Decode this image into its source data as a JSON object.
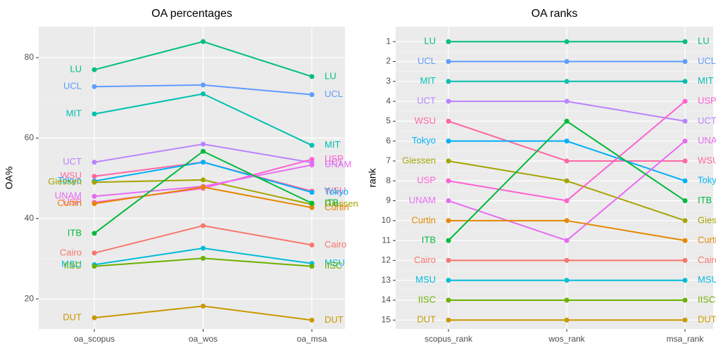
{
  "chart_data": [
    {
      "type": "line",
      "title": "OA percentages",
      "ylabel": "OA%",
      "categories": [
        "oa_scopus",
        "oa_wos",
        "oa_msa"
      ],
      "ylim": [
        12.5,
        87.7
      ],
      "yticks": [
        20,
        40,
        60,
        80
      ],
      "grid": true,
      "series": [
        {
          "name": "LU",
          "color": "#00BF7D",
          "values": [
            77,
            84,
            75.3
          ]
        },
        {
          "name": "UCL",
          "color": "#619CFF",
          "values": [
            72.8,
            73.2,
            70.8
          ]
        },
        {
          "name": "MIT",
          "color": "#00C0AF",
          "values": [
            66,
            71,
            58.2
          ]
        },
        {
          "name": "UCT",
          "color": "#B983FF",
          "values": [
            54,
            58.5,
            53.9
          ]
        },
        {
          "name": "WSU",
          "color": "#FF67A4",
          "values": [
            50.5,
            54,
            46.8
          ]
        },
        {
          "name": "Tokyo",
          "color": "#00B0F6",
          "values": [
            49.3,
            54,
            46.5
          ]
        },
        {
          "name": "Giessen",
          "color": "#A3A500",
          "values": [
            49,
            49.6,
            43.5
          ]
        },
        {
          "name": "USP",
          "color": "#FD61D1",
          "values": [
            44,
            47.5,
            54.7
          ]
        },
        {
          "name": "UNAM",
          "color": "#E76BF3",
          "values": [
            45.5,
            48,
            53.3
          ]
        },
        {
          "name": "Curtin",
          "color": "#E58700",
          "values": [
            43.7,
            47.8,
            42.7
          ]
        },
        {
          "name": "ITB",
          "color": "#00BA38",
          "values": [
            36.3,
            56.7,
            43.8
          ]
        },
        {
          "name": "Cairo",
          "color": "#F8766D",
          "values": [
            31.4,
            38.2,
            33.4
          ]
        },
        {
          "name": "MSU",
          "color": "#00BCD8",
          "values": [
            28.5,
            32.6,
            28.8
          ]
        },
        {
          "name": "IISC",
          "color": "#6BB100",
          "values": [
            28.1,
            30.1,
            28.1
          ]
        },
        {
          "name": "DUT",
          "color": "#C99800",
          "values": [
            15.3,
            18.2,
            14.7
          ]
        }
      ]
    },
    {
      "type": "line",
      "title": "OA ranks",
      "ylabel": "rank",
      "categories": [
        "scopus_rank",
        "wos_rank",
        "msa_rank"
      ],
      "ylim": [
        15.45,
        0.25
      ],
      "yticks": [
        1,
        2,
        3,
        4,
        5,
        6,
        7,
        8,
        9,
        10,
        11,
        12,
        13,
        14,
        15
      ],
      "grid": true,
      "series": [
        {
          "name": "LU",
          "color": "#00BF7D",
          "values": [
            1,
            1,
            1
          ]
        },
        {
          "name": "UCL",
          "color": "#619CFF",
          "values": [
            2,
            2,
            2
          ]
        },
        {
          "name": "MIT",
          "color": "#00C0AF",
          "values": [
            3,
            3,
            3
          ]
        },
        {
          "name": "UCT",
          "color": "#B983FF",
          "values": [
            4,
            4,
            5
          ]
        },
        {
          "name": "WSU",
          "color": "#FF67A4",
          "values": [
            5,
            7,
            7
          ]
        },
        {
          "name": "Tokyo",
          "color": "#00B0F6",
          "values": [
            6,
            6,
            8
          ]
        },
        {
          "name": "Giessen",
          "color": "#A3A500",
          "values": [
            7,
            8,
            10
          ]
        },
        {
          "name": "USP",
          "color": "#FD61D1",
          "values": [
            8,
            9,
            4
          ]
        },
        {
          "name": "UNAM",
          "color": "#E76BF3",
          "values": [
            9,
            11,
            6
          ]
        },
        {
          "name": "Curtin",
          "color": "#E58700",
          "values": [
            10,
            10,
            11
          ]
        },
        {
          "name": "ITB",
          "color": "#00BA38",
          "values": [
            11,
            5,
            9
          ]
        },
        {
          "name": "Cairo",
          "color": "#F8766D",
          "values": [
            12,
            12,
            12
          ]
        },
        {
          "name": "MSU",
          "color": "#00BCD8",
          "values": [
            13,
            13,
            13
          ]
        },
        {
          "name": "IISC",
          "color": "#6BB100",
          "values": [
            14,
            14,
            14
          ]
        },
        {
          "name": "DUT",
          "color": "#C99800",
          "values": [
            15,
            15,
            15
          ]
        }
      ]
    }
  ]
}
